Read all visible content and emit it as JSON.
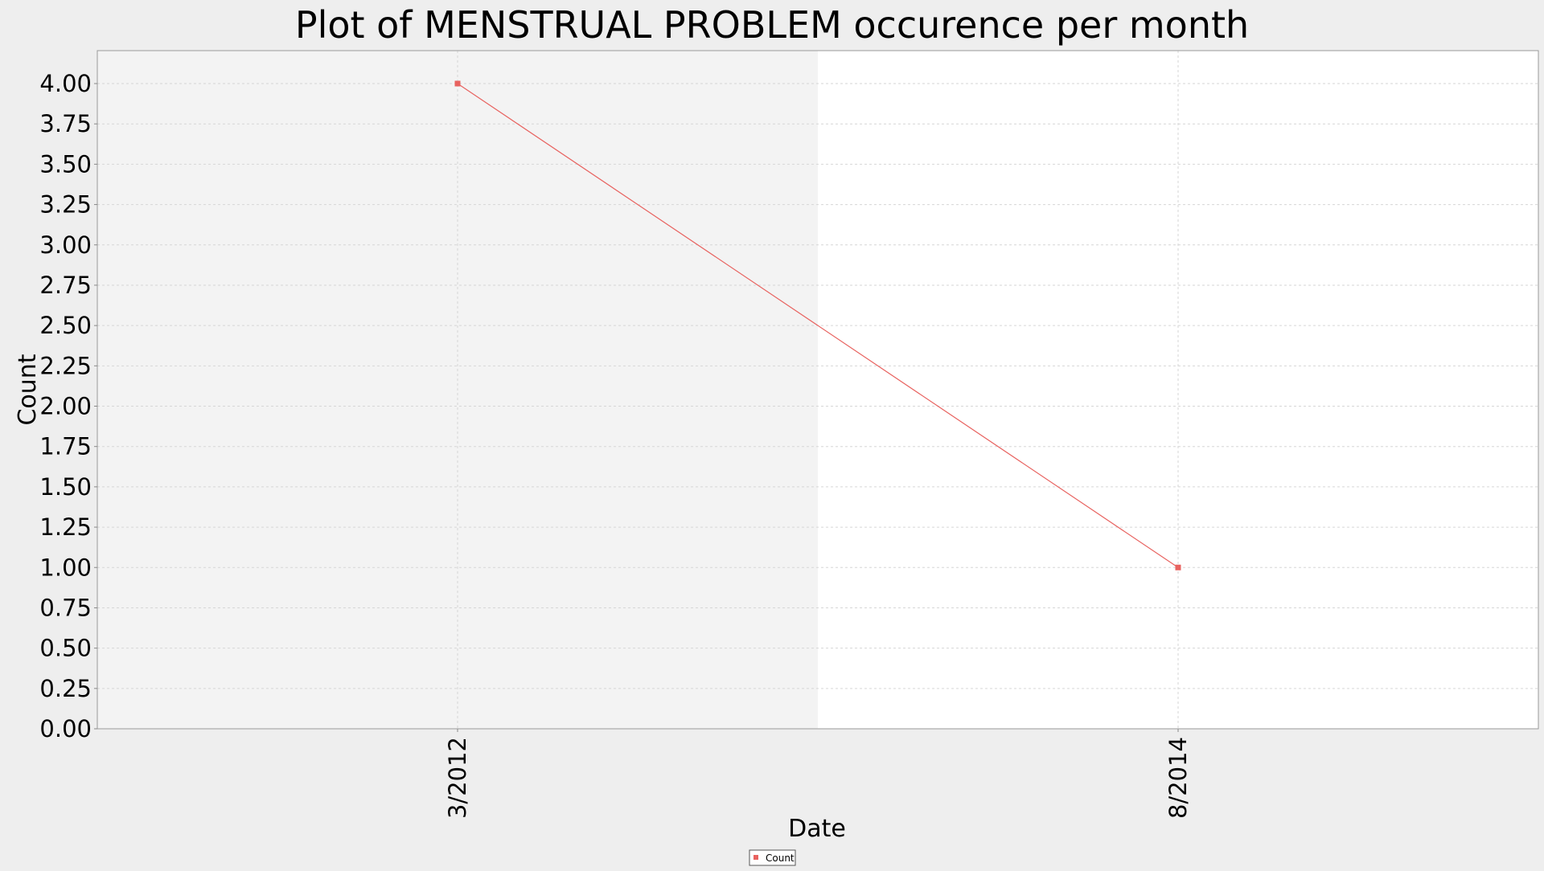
{
  "chart_data": {
    "type": "line",
    "title": "Plot of MENSTRUAL PROBLEM occurence per month",
    "xlabel": "Date",
    "ylabel": "Count",
    "categories": [
      "3/2012",
      "8/2014"
    ],
    "series": [
      {
        "name": "Count",
        "values": [
          4,
          1
        ],
        "color": "#e8625f"
      }
    ],
    "ylim": [
      0,
      4.0
    ],
    "ytick_step": 0.25,
    "yticks": [
      "0.00",
      "0.25",
      "0.50",
      "0.75",
      "1.00",
      "1.25",
      "1.50",
      "1.75",
      "2.00",
      "2.25",
      "2.50",
      "2.75",
      "3.00",
      "3.25",
      "3.50",
      "3.75",
      "4.00"
    ],
    "grid": true,
    "legend": "bottom-center",
    "alternating_band_colors": [
      "#f3f3f3",
      "#ffffff"
    ],
    "page_background": "#eeeeee"
  }
}
